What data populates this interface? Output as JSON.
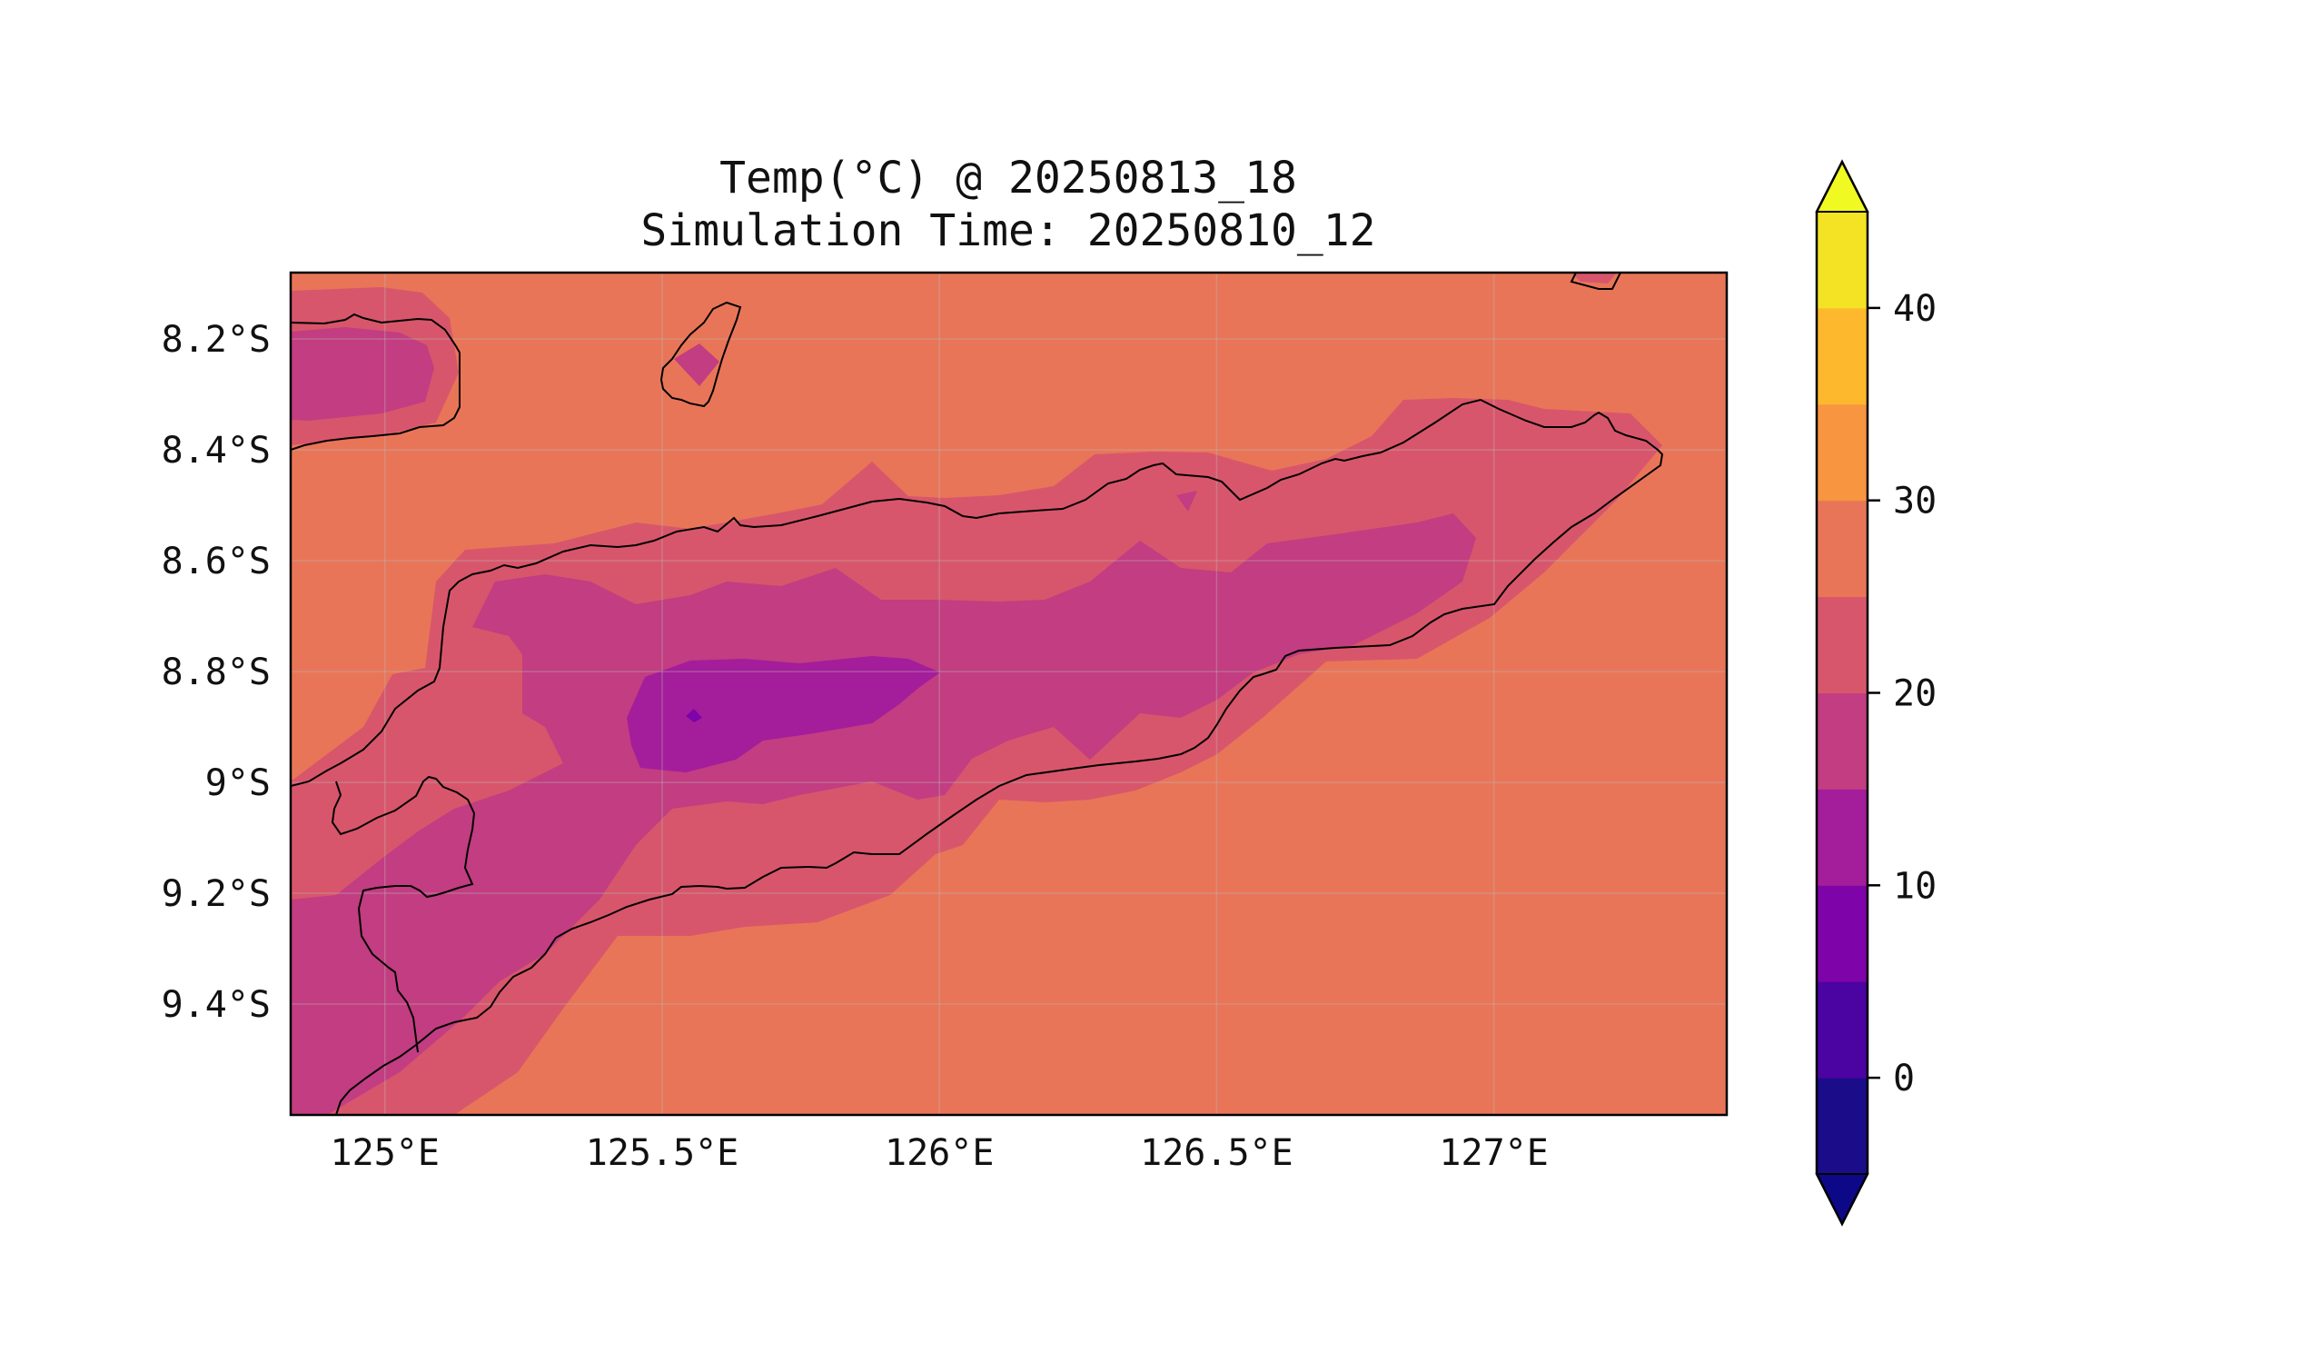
{
  "title": {
    "line1": "Temp(°C) @ 20250813_18",
    "line2": "Simulation Time: 20250810_12"
  },
  "map": {
    "variable": "Temp(°C)",
    "lon_range": [
      124.83,
      127.42
    ],
    "lat_range": [
      -9.6,
      -8.08
    ],
    "lon_ticks": [
      {
        "value": 125.0,
        "label": "125°E"
      },
      {
        "value": 125.5,
        "label": "125.5°E"
      },
      {
        "value": 126.0,
        "label": "126°E"
      },
      {
        "value": 126.5,
        "label": "126.5°E"
      },
      {
        "value": 127.0,
        "label": "127°E"
      }
    ],
    "lat_ticks": [
      {
        "value": -8.2,
        "label": "8.2°S"
      },
      {
        "value": -8.4,
        "label": "8.4°S"
      },
      {
        "value": -8.6,
        "label": "8.6°S"
      },
      {
        "value": -8.8,
        "label": "8.8°S"
      },
      {
        "value": -9.0,
        "label": "9°S"
      },
      {
        "value": -9.2,
        "label": "9.2°S"
      },
      {
        "value": -9.4,
        "label": "9.4°S"
      }
    ],
    "grid": true
  },
  "colorbar": {
    "levels": [
      -5,
      0,
      5,
      10,
      15,
      20,
      25,
      30,
      35,
      40,
      45
    ],
    "colors": [
      "#1b0c89",
      "#4b03a1",
      "#7e03a8",
      "#a41d9a",
      "#c23d81",
      "#d8566b",
      "#e97558",
      "#f89540",
      "#fdb82e",
      "#f3e324"
    ],
    "under_color": "#0d0887",
    "over_color": "#f0f921",
    "extend": "both",
    "tick_labels": [
      {
        "value": 0,
        "label": "0"
      },
      {
        "value": 10,
        "label": "10"
      },
      {
        "value": 20,
        "label": "20"
      },
      {
        "value": 30,
        "label": "30"
      },
      {
        "value": 40,
        "label": "40"
      }
    ]
  }
}
